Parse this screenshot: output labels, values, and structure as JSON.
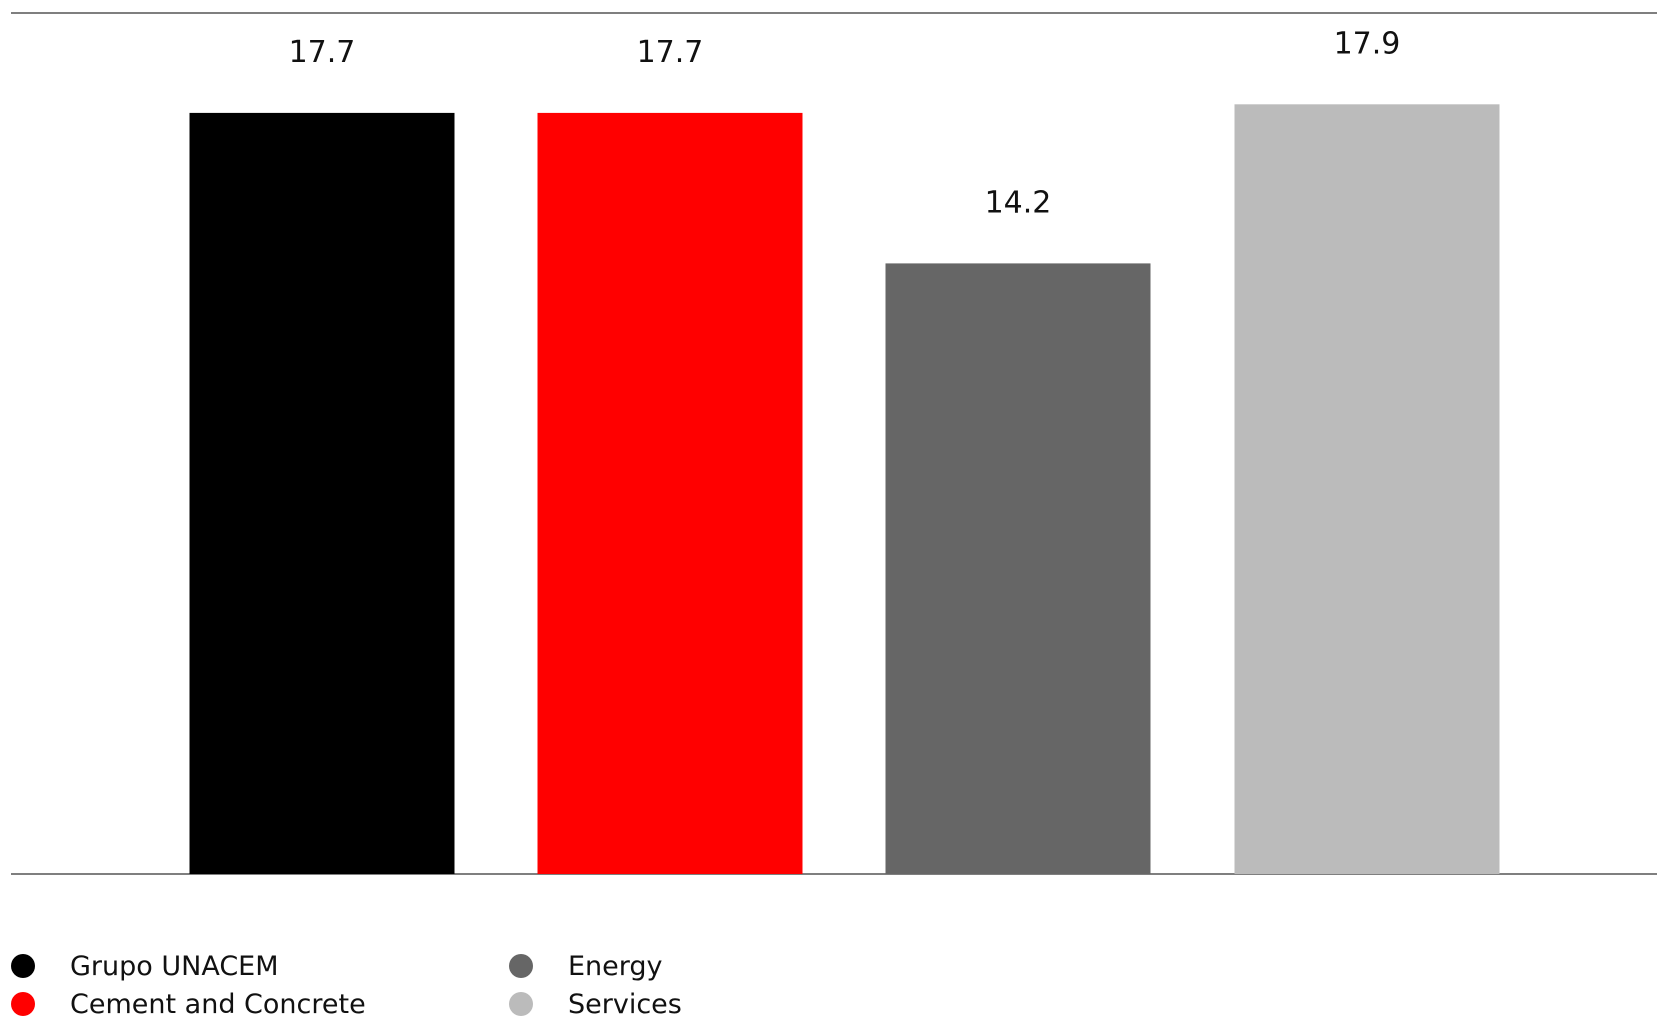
{
  "chart_data": {
    "type": "bar",
    "categories": [
      "Grupo UNACEM",
      "Cement and Concrete",
      "Energy",
      "Services"
    ],
    "values": [
      17.7,
      17.7,
      14.2,
      17.9
    ],
    "value_labels": [
      "17.7",
      "17.7",
      "14.2",
      "17.9"
    ],
    "colors": [
      "#000000",
      "#ff0000",
      "#666666",
      "#bbbbbb"
    ],
    "title": "",
    "xlabel": "",
    "ylabel": "",
    "ylim": [
      0,
      20
    ],
    "grid": false,
    "legend_position": "bottom-left",
    "axis_color": "#555555"
  },
  "legend": {
    "items": [
      {
        "label": "Grupo UNACEM",
        "color": "#000000"
      },
      {
        "label": "Cement and Concrete",
        "color": "#ff0000"
      },
      {
        "label": "Energy",
        "color": "#666666"
      },
      {
        "label": "Services",
        "color": "#bbbbbb"
      }
    ]
  }
}
